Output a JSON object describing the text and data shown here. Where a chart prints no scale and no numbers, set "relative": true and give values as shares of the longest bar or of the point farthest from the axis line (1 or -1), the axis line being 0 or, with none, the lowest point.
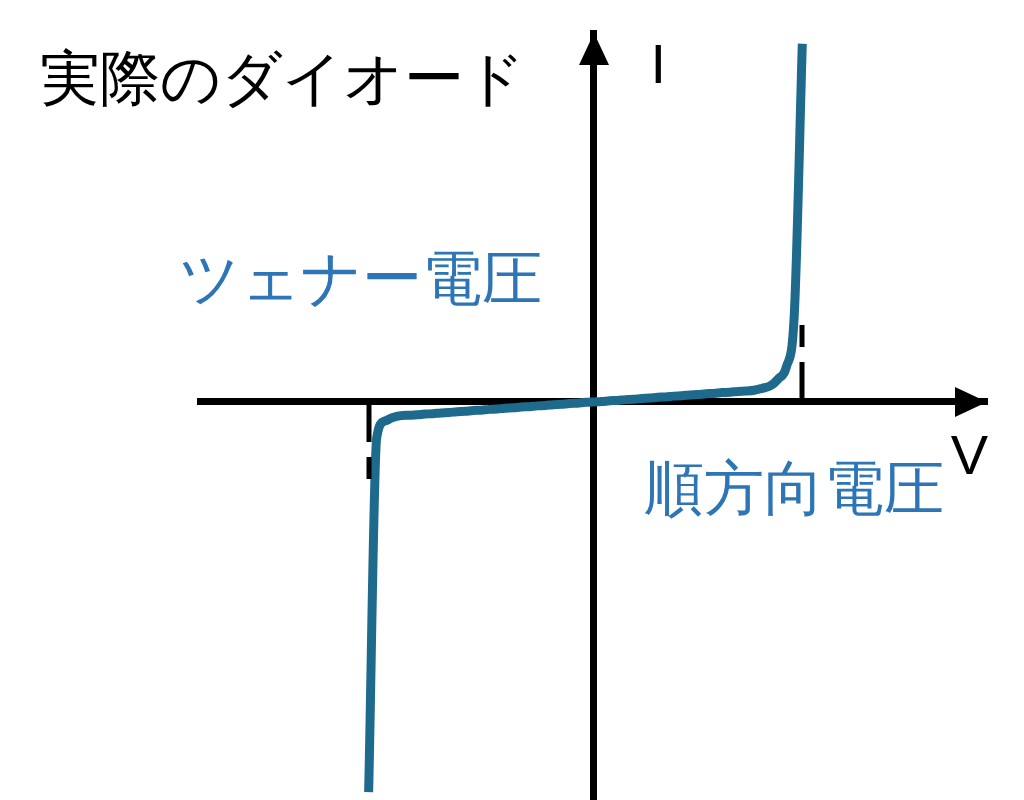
{
  "chart_data": {
    "type": "line",
    "title": "実際のダイオード",
    "xlabel": "V",
    "ylabel": "I",
    "relative": true,
    "categories": [
      null,
      null,
      null,
      null,
      null,
      null,
      null,
      null,
      null,
      null,
      null,
      null,
      null,
      null,
      null,
      null,
      null,
      null,
      null,
      null,
      null,
      null,
      null,
      null,
      null,
      null,
      null,
      null,
      null,
      null,
      null,
      null,
      null,
      null,
      null,
      null,
      null,
      null,
      null,
      null,
      null,
      null,
      null,
      null,
      null,
      null,
      null,
      null,
      null,
      null,
      null,
      null,
      null,
      null,
      null,
      null,
      null,
      null,
      null,
      null,
      null,
      null,
      null,
      null,
      null,
      null,
      null,
      null,
      null,
      null,
      null,
      null,
      null,
      null,
      null,
      null,
      null,
      null,
      null,
      null,
      null,
      null,
      null,
      null,
      null,
      null,
      null,
      null,
      null,
      null,
      null,
      null,
      null,
      null,
      null,
      null,
      null,
      null,
      null
    ],
    "series": [
      {
        "color": "#1d6a8c",
        "values": [
          null,
          null,
          null,
          null,
          null,
          null,
          null,
          null,
          null,
          null,
          null,
          null,
          null,
          null,
          null,
          null,
          null,
          null,
          null,
          null,
          null,
          -1.0,
          -0.092,
          -0.049,
          -0.04,
          -0.035,
          -0.034,
          -0.033,
          -0.031,
          -0.03,
          -0.028,
          -0.027,
          -0.025,
          -0.024,
          -0.022,
          -0.021,
          -0.019,
          -0.018,
          -0.016,
          -0.015,
          -0.013,
          -0.012,
          -0.01,
          -0.009,
          -0.007,
          -0.006,
          -0.004,
          -0.003,
          -0.001,
          0,
          0.001,
          0.003,
          0.004,
          0.006,
          0.007,
          0.009,
          0.01,
          0.012,
          0.013,
          0.015,
          0.016,
          0.018,
          0.019,
          0.021,
          0.022,
          0.024,
          0.025,
          0.027,
          0.028,
          0.03,
          0.035,
          0.041,
          0.059,
          0.089,
          0.223,
          0.918,
          null,
          null,
          null,
          null,
          null,
          null,
          null,
          null,
          null,
          null,
          null,
          null,
          null,
          null,
          null,
          null,
          null,
          null,
          null,
          null,
          null,
          null,
          null
        ]
      }
    ],
    "annotations": [
      "ツェナー電圧",
      "順方向電圧"
    ],
    "marker": "none",
    "line_style": "solid"
  }
}
